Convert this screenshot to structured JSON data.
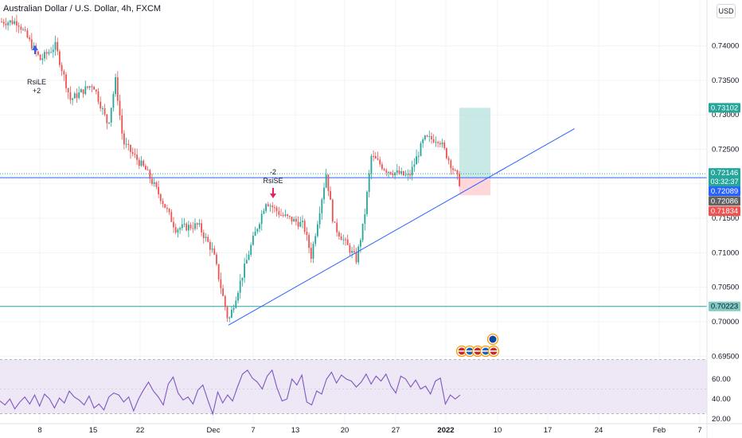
{
  "header": {
    "title": "Australian Dollar / U.S. Dollar, 4h, FXCM",
    "currency_button": "USD"
  },
  "colors": {
    "up": "#26a69a",
    "down": "#ef5350",
    "trendline": "#2962ff",
    "hline_teal": "#26a69a",
    "rsi_line": "#7e57c2",
    "rsi_band": "#ede7f6",
    "target_zone": "#b2dfdb",
    "stop_zone": "#ffcdd2"
  },
  "price_axis": {
    "ticks": [
      "0.74000",
      "0.73500",
      "0.73000",
      "0.72500",
      "0.72000",
      "0.71500",
      "0.71000",
      "0.70500",
      "0.70000",
      "0.69500"
    ],
    "ylim": [
      0.6946,
      0.7478
    ]
  },
  "price_labels": {
    "target": "0.73102",
    "last_price": "0.72146",
    "countdown": "03:32:37",
    "blue_line": "0.72089",
    "entry": "0.72086",
    "stop": "0.71834",
    "support": "0.70223"
  },
  "annotations": {
    "long_signal": "RsiLE",
    "long_count": "+2",
    "short_signal": "RsiSE",
    "short_count": "-2"
  },
  "rsi_axis": {
    "ticks": [
      "60.00",
      "40.00",
      "20.00"
    ]
  },
  "time_axis": {
    "labels": [
      "8",
      "15",
      "22",
      "Dec",
      "7",
      "13",
      "20",
      "27",
      "2022",
      "10",
      "17",
      "24",
      "Feb",
      "7"
    ]
  },
  "chart_data": {
    "type": "candlestick",
    "symbol": "AUDUSD",
    "interval": "4h",
    "ylim": [
      0.6946,
      0.7478
    ],
    "close_path": [
      {
        "date": "Nov 5",
        "close": 0.7435
      },
      {
        "date": "Nov 8",
        "close": 0.738
      },
      {
        "date": "Nov 10",
        "close": 0.74
      },
      {
        "date": "Nov 12",
        "close": 0.7322
      },
      {
        "date": "Nov 15",
        "close": 0.7345
      },
      {
        "date": "Nov 17",
        "close": 0.7285
      },
      {
        "date": "Nov 18",
        "close": 0.735
      },
      {
        "date": "Nov 19",
        "close": 0.726
      },
      {
        "date": "Nov 22",
        "close": 0.722
      },
      {
        "date": "Nov 24",
        "close": 0.718
      },
      {
        "date": "Nov 26",
        "close": 0.7135
      },
      {
        "date": "Nov 29",
        "close": 0.714
      },
      {
        "date": "Dec 1",
        "close": 0.71
      },
      {
        "date": "Dec 3",
        "close": 0.7
      },
      {
        "date": "Dec 6",
        "close": 0.711
      },
      {
        "date": "Dec 8",
        "close": 0.7175
      },
      {
        "date": "Dec 10",
        "close": 0.7155
      },
      {
        "date": "Dec 13",
        "close": 0.714
      },
      {
        "date": "Dec 14",
        "close": 0.7095
      },
      {
        "date": "Dec 16",
        "close": 0.7215
      },
      {
        "date": "Dec 17",
        "close": 0.714
      },
      {
        "date": "Dec 20",
        "close": 0.709
      },
      {
        "date": "Dec 21",
        "close": 0.7145
      },
      {
        "date": "Dec 22",
        "close": 0.724
      },
      {
        "date": "Dec 24",
        "close": 0.722
      },
      {
        "date": "Dec 27",
        "close": 0.721
      },
      {
        "date": "Dec 29",
        "close": 0.7265
      },
      {
        "date": "Dec 31",
        "close": 0.7265
      },
      {
        "date": "Jan 3",
        "close": 0.7195
      },
      {
        "date": "Jan 4",
        "close": 0.7215
      }
    ],
    "trendline": {
      "from": {
        "date": "Dec 3",
        "price": 0.6995
      },
      "to": {
        "date": "Jan 18",
        "price": 0.728
      }
    },
    "horizontal_lines": [
      0.72089,
      0.70223
    ],
    "position": {
      "entry": 0.72086,
      "target": 0.73102,
      "stop": 0.71834
    },
    "rsi": {
      "bands": [
        30,
        70
      ],
      "values": [
        38,
        34,
        40,
        30,
        37,
        42,
        35,
        44,
        33,
        45,
        40,
        31,
        41,
        36,
        48,
        42,
        39,
        34,
        43,
        31,
        35,
        29,
        42,
        46,
        44,
        37,
        42,
        28,
        40,
        49,
        57,
        48,
        42,
        34,
        55,
        62,
        46,
        39,
        42,
        35,
        49,
        54,
        39,
        25,
        47,
        36,
        44,
        38,
        52,
        65,
        69,
        61,
        57,
        50,
        63,
        69,
        51,
        38,
        40,
        60,
        54,
        64,
        37,
        34,
        48,
        45,
        60,
        67,
        56,
        64,
        60,
        58,
        52,
        57,
        65,
        55,
        63,
        58,
        65,
        53,
        46,
        63,
        60,
        52,
        59,
        50,
        53,
        45,
        58,
        61,
        35,
        44,
        40,
        44
      ]
    }
  }
}
